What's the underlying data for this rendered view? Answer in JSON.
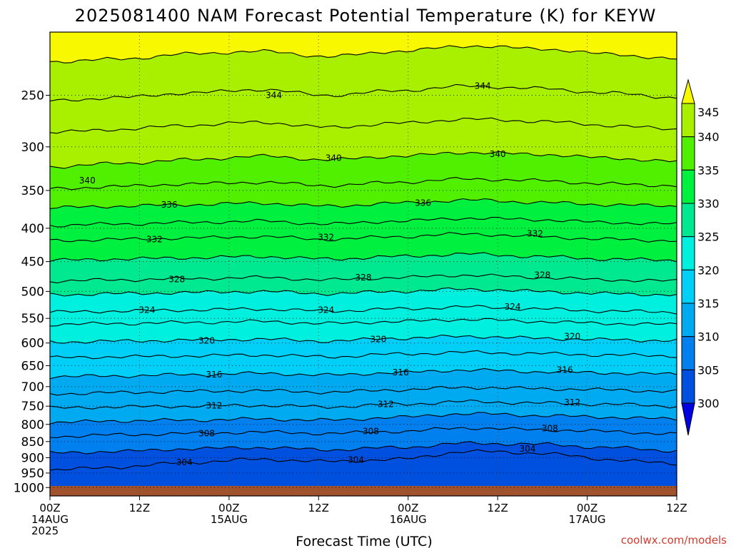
{
  "title": "2025081400 NAM Forecast Potential Temperature (K) for KEYW",
  "credit": "coolwx.com/models",
  "chart_data": {
    "type": "contour",
    "variable": "Potential Temperature",
    "units": "K",
    "xlabel": "Forecast Time (UTC)",
    "x_ticks": [
      {
        "hours": 0,
        "lines": [
          "00Z",
          "14AUG",
          "2025"
        ]
      },
      {
        "hours": 12,
        "lines": [
          "12Z"
        ]
      },
      {
        "hours": 24,
        "lines": [
          "00Z",
          "15AUG"
        ]
      },
      {
        "hours": 36,
        "lines": [
          "12Z"
        ]
      },
      {
        "hours": 48,
        "lines": [
          "00Z",
          "16AUG"
        ]
      },
      {
        "hours": 60,
        "lines": [
          "12Z"
        ]
      },
      {
        "hours": 72,
        "lines": [
          "00Z",
          "17AUG"
        ]
      },
      {
        "hours": 84,
        "lines": [
          "12Z"
        ]
      }
    ],
    "xlim": [
      0,
      84
    ],
    "y_ticks": [
      250,
      300,
      350,
      400,
      450,
      500,
      550,
      600,
      650,
      700,
      750,
      800,
      850,
      900,
      950,
      1000
    ],
    "ylim": [
      1030,
      200
    ],
    "y_scale": "log",
    "grid": true,
    "colorbar": {
      "levels": [
        300,
        305,
        310,
        315,
        320,
        325,
        330,
        335,
        340,
        345
      ],
      "colors": [
        "#0000e0",
        "#0050e0",
        "#0080ee",
        "#00aaf0",
        "#00d0f8",
        "#00f0e0",
        "#00e890",
        "#00f040",
        "#50f000",
        "#a8f000",
        "#f8f800"
      ],
      "extend": "both"
    },
    "contours": [
      {
        "value": 304,
        "pressures": [
          940,
          930,
          915,
          905,
          912,
          905,
          880,
          885,
          905,
          920
        ]
      },
      {
        "value": 306,
        "pressures": [
          885,
          880,
          872,
          868,
          875,
          868,
          855,
          858,
          868,
          878
        ]
      },
      {
        "value": 308,
        "pressures": [
          835,
          830,
          826,
          822,
          826,
          820,
          810,
          815,
          820,
          828
        ]
      },
      {
        "value": 310,
        "pressures": [
          795,
          790,
          788,
          785,
          788,
          780,
          770,
          775,
          780,
          785
        ]
      },
      {
        "value": 312,
        "pressures": [
          755,
          752,
          750,
          748,
          752,
          745,
          738,
          742,
          745,
          750
        ]
      },
      {
        "value": 314,
        "pressures": [
          718,
          715,
          712,
          710,
          714,
          708,
          702,
          705,
          708,
          712
        ]
      },
      {
        "value": 316,
        "pressures": [
          676,
          674,
          671,
          668,
          672,
          666,
          660,
          664,
          667,
          670
        ]
      },
      {
        "value": 318,
        "pressures": [
          632,
          630,
          628,
          626,
          630,
          624,
          620,
          623,
          626,
          628
        ]
      },
      {
        "value": 320,
        "pressures": [
          598,
          596,
          594,
          592,
          596,
          590,
          586,
          590,
          593,
          595
        ]
      },
      {
        "value": 322,
        "pressures": [
          562,
          560,
          558,
          556,
          560,
          556,
          552,
          556,
          560,
          562
        ]
      },
      {
        "value": 324,
        "pressures": [
          538,
          536,
          534,
          532,
          536,
          532,
          528,
          532,
          536,
          538
        ]
      },
      {
        "value": 326,
        "pressures": [
          506,
          504,
          502,
          500,
          504,
          500,
          496,
          500,
          504,
          506
        ]
      },
      {
        "value": 328,
        "pressures": [
          482,
          480,
          478,
          476,
          480,
          476,
          472,
          476,
          480,
          482
        ]
      },
      {
        "value": 330,
        "pressures": [
          448,
          446,
          444,
          442,
          446,
          442,
          438,
          442,
          446,
          448
        ]
      },
      {
        "value": 332,
        "pressures": [
          418,
          416,
          414,
          412,
          416,
          412,
          408,
          412,
          416,
          418
        ]
      },
      {
        "value": 334,
        "pressures": [
          396,
          394,
          392,
          390,
          394,
          390,
          386,
          388,
          392,
          394
        ]
      },
      {
        "value": 336,
        "pressures": [
          372,
          370,
          368,
          366,
          370,
          366,
          362,
          365,
          368,
          370
        ]
      },
      {
        "value": 338,
        "pressures": [
          348,
          345,
          342,
          340,
          344,
          340,
          336,
          338,
          342,
          344
        ]
      },
      {
        "value": 340,
        "pressures": [
          322,
          318,
          314,
          310,
          314,
          310,
          306,
          308,
          312,
          316
        ]
      },
      {
        "value": 342,
        "pressures": [
          285,
          282,
          278,
          275,
          280,
          276,
          272,
          274,
          278,
          282
        ]
      },
      {
        "value": 344,
        "pressures": [
          255,
          252,
          248,
          245,
          250,
          246,
          242,
          244,
          248,
          252
        ]
      },
      {
        "value": 346,
        "pressures": [
          222,
          220,
          216,
          214,
          218,
          214,
          210,
          212,
          216,
          220
        ]
      }
    ],
    "contour_labels": [
      {
        "value": 304,
        "hours": 18,
        "pressure": 915
      },
      {
        "value": 304,
        "hours": 41,
        "pressure": 907
      },
      {
        "value": 304,
        "hours": 64,
        "pressure": 872
      },
      {
        "value": 308,
        "hours": 21,
        "pressure": 826
      },
      {
        "value": 308,
        "hours": 43,
        "pressure": 820
      },
      {
        "value": 308,
        "hours": 67,
        "pressure": 812
      },
      {
        "value": 312,
        "hours": 22,
        "pressure": 749
      },
      {
        "value": 312,
        "hours": 45,
        "pressure": 745
      },
      {
        "value": 312,
        "hours": 70,
        "pressure": 740
      },
      {
        "value": 316,
        "hours": 22,
        "pressure": 671
      },
      {
        "value": 316,
        "hours": 47,
        "pressure": 666
      },
      {
        "value": 316,
        "hours": 69,
        "pressure": 660
      },
      {
        "value": 320,
        "hours": 21,
        "pressure": 595
      },
      {
        "value": 320,
        "hours": 44,
        "pressure": 592
      },
      {
        "value": 320,
        "hours": 70,
        "pressure": 586
      },
      {
        "value": 324,
        "hours": 13,
        "pressure": 534
      },
      {
        "value": 324,
        "hours": 37,
        "pressure": 534
      },
      {
        "value": 324,
        "hours": 62,
        "pressure": 528
      },
      {
        "value": 328,
        "hours": 17,
        "pressure": 479
      },
      {
        "value": 328,
        "hours": 42,
        "pressure": 476
      },
      {
        "value": 328,
        "hours": 66,
        "pressure": 472
      },
      {
        "value": 332,
        "hours": 14,
        "pressure": 416
      },
      {
        "value": 332,
        "hours": 37,
        "pressure": 413
      },
      {
        "value": 332,
        "hours": 65,
        "pressure": 408
      },
      {
        "value": 336,
        "hours": 16,
        "pressure": 368
      },
      {
        "value": 336,
        "hours": 50,
        "pressure": 366
      },
      {
        "value": 340,
        "hours": 5,
        "pressure": 338
      },
      {
        "value": 340,
        "hours": 38,
        "pressure": 312
      },
      {
        "value": 340,
        "hours": 60,
        "pressure": 308
      },
      {
        "value": 344,
        "hours": 30,
        "pressure": 250
      },
      {
        "value": 344,
        "hours": 58,
        "pressure": 242
      }
    ]
  }
}
